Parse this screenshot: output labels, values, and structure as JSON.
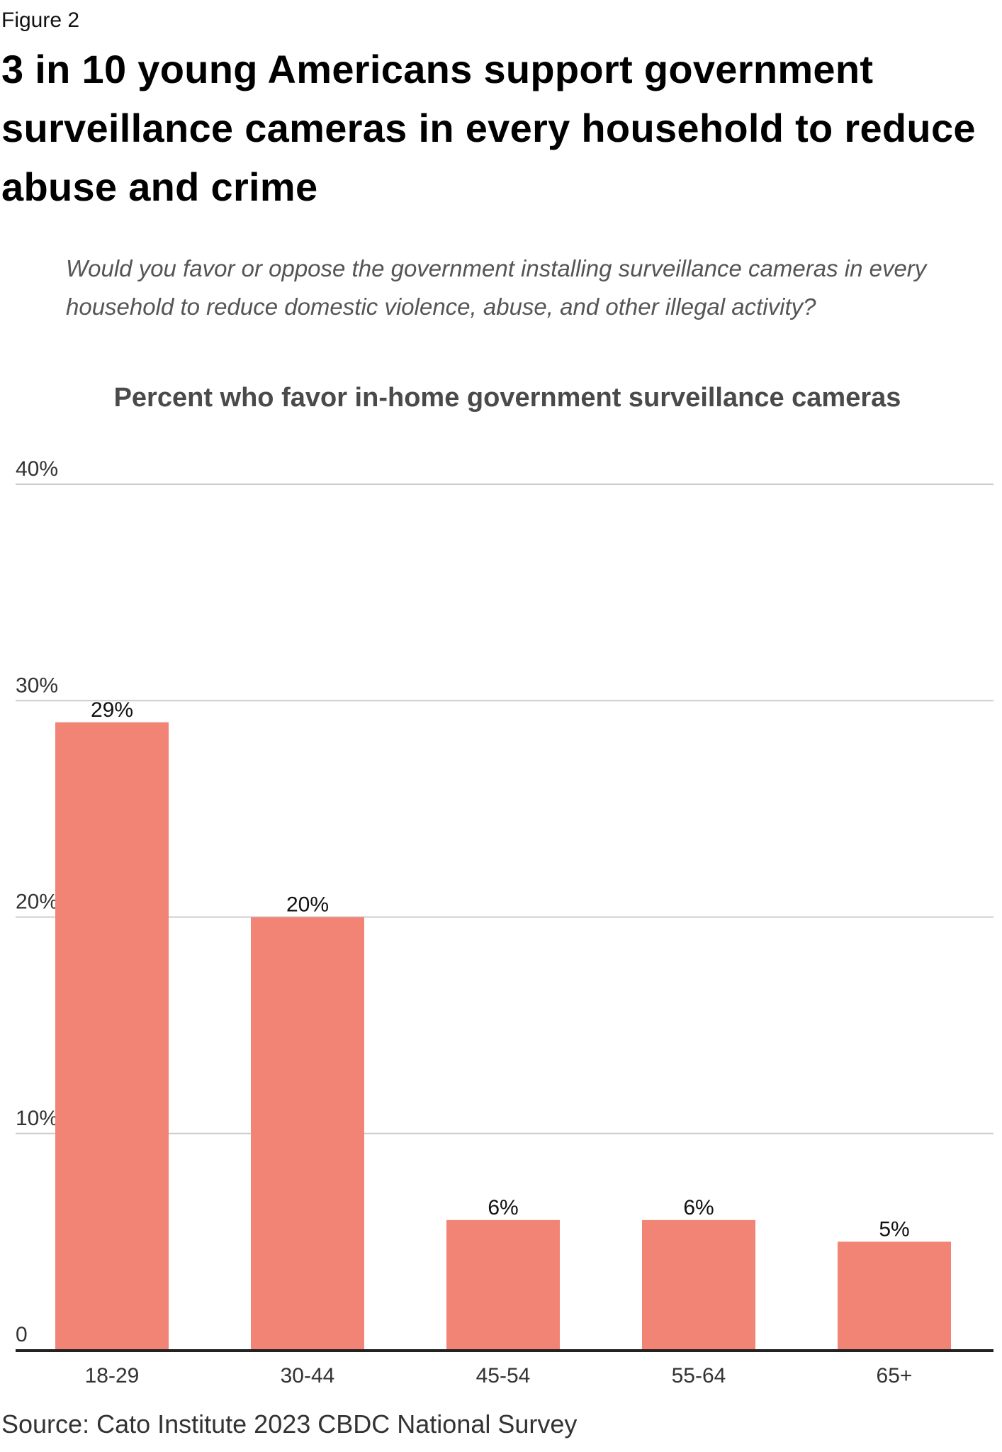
{
  "header": {
    "figure_label": "Figure 2",
    "headline": "3 in 10 young Americans support government surveillance cameras in every household to reduce abuse and crime",
    "question": "Would you favor or oppose the government installing surveillance cameras in every household to reduce domestic violence, abuse, and other illegal activity?"
  },
  "footer": {
    "source": "Source: Cato Institute 2023 CBDC National Survey"
  },
  "chart_data": {
    "type": "bar",
    "title": "Percent who favor in-home government surveillance cameras",
    "xlabel": "",
    "ylabel": "",
    "categories": [
      "18-29",
      "30-44",
      "45-54",
      "55-64",
      "65+"
    ],
    "values": [
      29,
      20,
      6,
      6,
      5
    ],
    "value_labels": [
      "29%",
      "20%",
      "6%",
      "6%",
      "5%"
    ],
    "ylim": [
      0,
      40
    ],
    "yticks": [
      0,
      10,
      20,
      30,
      40
    ],
    "ytick_labels": [
      "0",
      "10%",
      "20%",
      "30%",
      "40%"
    ],
    "grid": true,
    "legend": "none",
    "colors": {
      "bar": "#f28476",
      "grid": "#cccccc",
      "axis": "#222222",
      "tick_text": "#333333"
    }
  }
}
